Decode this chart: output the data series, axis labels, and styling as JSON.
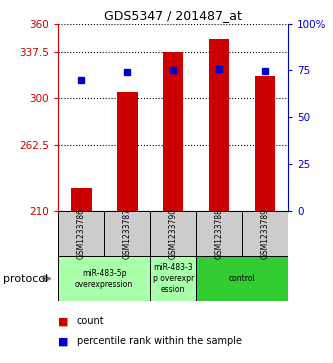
{
  "title": "GDS5347 / 201487_at",
  "samples": [
    "GSM1233786",
    "GSM1233787",
    "GSM1233790",
    "GSM1233788",
    "GSM1233789"
  ],
  "count_values": [
    228,
    305,
    337.5,
    348,
    318
  ],
  "percentile_values": [
    70,
    74,
    75,
    75.5,
    74.5
  ],
  "ylim_left": [
    210,
    360
  ],
  "ylim_right": [
    0,
    100
  ],
  "yticks_left": [
    210,
    262.5,
    300,
    337.5,
    360
  ],
  "yticks_right": [
    0,
    25,
    50,
    75,
    100
  ],
  "ytick_labels_left": [
    "210",
    "262.5",
    "300",
    "337.5",
    "360"
  ],
  "ytick_labels_right": [
    "0",
    "25",
    "50",
    "75",
    "100%"
  ],
  "bar_color": "#cc0000",
  "dot_color": "#0000cc",
  "bg_color": "#ffffff",
  "protocol_groups": [
    {
      "label": "miR-483-5p\noverexpression",
      "samples": [
        0,
        1
      ],
      "color": "#aaffaa"
    },
    {
      "label": "miR-483-3\np overexpr\nession",
      "samples": [
        2
      ],
      "color": "#aaffaa"
    },
    {
      "label": "control",
      "samples": [
        3,
        4
      ],
      "color": "#33cc33"
    }
  ],
  "legend_count_label": "count",
  "legend_percentile_label": "percentile rank within the sample",
  "protocol_label": "protocol",
  "left_axis_color": "#cc0000",
  "right_axis_color": "#0000cc"
}
